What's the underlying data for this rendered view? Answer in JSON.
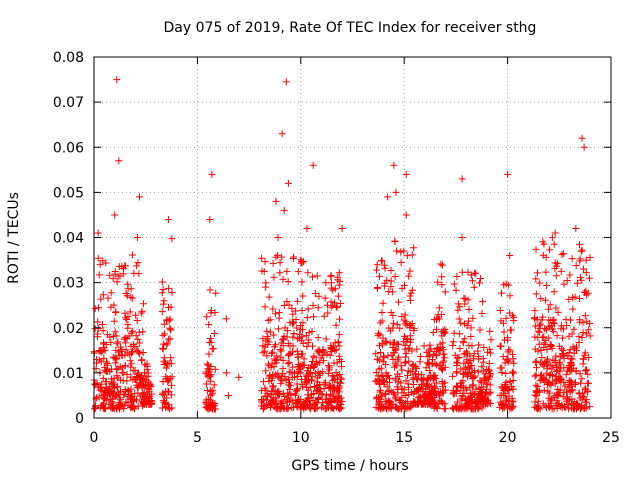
{
  "chart_data": {
    "type": "scatter",
    "title": "Day 075 of 2019, Rate Of TEC Index for receiver sthg",
    "xlabel": "GPS time / hours",
    "ylabel": "ROTI / TECUs",
    "xlim": [
      0,
      25
    ],
    "ylim": [
      0,
      0.08
    ],
    "x_ticks": [
      "0",
      "5",
      "10",
      "15",
      "20",
      "25"
    ],
    "y_ticks": [
      "0",
      "0.01",
      "0.02",
      "0.03",
      "0.04",
      "0.05",
      "0.06",
      "0.07",
      "0.08"
    ],
    "grid": true,
    "marker": "+",
    "series_color": "#ff0000",
    "series": [
      {
        "name": "ROTI",
        "notable_points": [
          [
            1.1,
            0.075
          ],
          [
            9.3,
            0.0745
          ],
          [
            23.6,
            0.062
          ],
          [
            9.1,
            0.063
          ],
          [
            23.7,
            0.06
          ],
          [
            1.2,
            0.057
          ],
          [
            10.6,
            0.056
          ],
          [
            14.5,
            0.056
          ],
          [
            15.1,
            0.054
          ],
          [
            5.7,
            0.054
          ],
          [
            20.0,
            0.054
          ],
          [
            17.8,
            0.053
          ],
          [
            9.4,
            0.052
          ],
          [
            14.6,
            0.05
          ],
          [
            2.2,
            0.049
          ],
          [
            14.2,
            0.049
          ],
          [
            8.8,
            0.048
          ],
          [
            9.2,
            0.046
          ],
          [
            1.0,
            0.045
          ],
          [
            15.1,
            0.045
          ],
          [
            3.6,
            0.044
          ],
          [
            5.6,
            0.044
          ],
          [
            10.3,
            0.042
          ],
          [
            12.0,
            0.042
          ],
          [
            23.3,
            0.042
          ],
          [
            0.2,
            0.041
          ],
          [
            22.3,
            0.041
          ],
          [
            2.1,
            0.04
          ],
          [
            17.8,
            0.04
          ],
          [
            8.9,
            0.04
          ],
          [
            20.1,
            0.036
          ],
          [
            23.8,
            0.035
          ],
          [
            0.3,
            0.034
          ],
          [
            8.3,
            0.029
          ],
          [
            6.4,
            0.022
          ],
          [
            6.4,
            0.01
          ],
          [
            6.5,
            0.005
          ],
          [
            7.0,
            0.009
          ],
          [
            21.3,
            0.022
          ],
          [
            19.8,
            0.021
          ]
        ],
        "dense_clusters": [
          {
            "x_range": [
              0.0,
              2.4
            ],
            "y_range": [
              0.002,
              0.02
            ]
          },
          {
            "x_range": [
              2.4,
              2.8
            ],
            "y_range": [
              0.003,
              0.008
            ]
          },
          {
            "x_range": [
              3.3,
              3.8
            ],
            "y_range": [
              0.002,
              0.022
            ]
          },
          {
            "x_range": [
              5.4,
              5.9
            ],
            "y_range": [
              0.002,
              0.016
            ]
          },
          {
            "x_range": [
              8.1,
              10.4
            ],
            "y_range": [
              0.002,
              0.02
            ]
          },
          {
            "x_range": [
              10.4,
              12.0
            ],
            "y_range": [
              0.002,
              0.018
            ]
          },
          {
            "x_range": [
              13.6,
              15.5
            ],
            "y_range": [
              0.002,
              0.022
            ]
          },
          {
            "x_range": [
              15.5,
              16.5
            ],
            "y_range": [
              0.003,
              0.01
            ]
          },
          {
            "x_range": [
              16.4,
              17.0
            ],
            "y_range": [
              0.002,
              0.02
            ]
          },
          {
            "x_range": [
              17.3,
              18.8
            ],
            "y_range": [
              0.002,
              0.018
            ]
          },
          {
            "x_range": [
              18.8,
              19.2
            ],
            "y_range": [
              0.003,
              0.012
            ]
          },
          {
            "x_range": [
              19.6,
              20.3
            ],
            "y_range": [
              0.002,
              0.018
            ]
          },
          {
            "x_range": [
              21.3,
              24.0
            ],
            "y_range": [
              0.002,
              0.022
            ]
          }
        ]
      }
    ]
  }
}
